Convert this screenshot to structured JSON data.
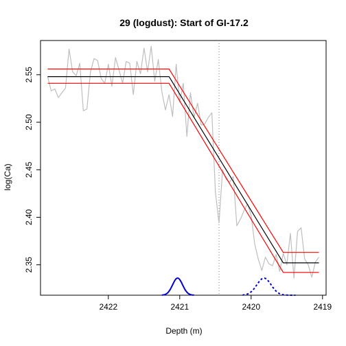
{
  "chart_data": {
    "type": "line",
    "title": "29 (logdust): Start of GI-17.2",
    "xlabel": "Depth (m)",
    "ylabel": "log(Ca)",
    "x_reversed": true,
    "xlim": [
      2422.95,
      2418.95
    ],
    "ylim": [
      2.318,
      2.586
    ],
    "xticks": [
      2422,
      2421,
      2420,
      2419
    ],
    "yticks": [
      2.35,
      2.4,
      2.45,
      2.5,
      2.55
    ],
    "ytick_labels": [
      "2.35",
      "2.40",
      "2.45",
      "2.50",
      "2.55"
    ],
    "grid": false,
    "colors": {
      "data": "#bebebe",
      "fit": "#000000",
      "band": "#ff0000",
      "onset_pdf": "#0000cd",
      "end_pdf": "#0000cd",
      "vline": "#808080"
    },
    "vline_x": 2420.45,
    "series": [
      {
        "key": "data",
        "x": [
          2422.85,
          2422.8,
          2422.75,
          2422.7,
          2422.65,
          2422.6,
          2422.55,
          2422.5,
          2422.45,
          2422.4,
          2422.35,
          2422.3,
          2422.25,
          2422.2,
          2422.15,
          2422.1,
          2422.05,
          2422.0,
          2421.95,
          2421.9,
          2421.85,
          2421.8,
          2421.75,
          2421.7,
          2421.65,
          2421.6,
          2421.55,
          2421.5,
          2421.45,
          2421.4,
          2421.35,
          2421.3,
          2421.25,
          2421.2,
          2421.15,
          2421.1,
          2421.05,
          2421.0,
          2420.95,
          2420.9,
          2420.85,
          2420.8,
          2420.75,
          2420.7,
          2420.65,
          2420.6,
          2420.55,
          2420.5,
          2420.45,
          2420.4,
          2420.35,
          2420.3,
          2420.25,
          2420.2,
          2420.15,
          2420.1,
          2420.05,
          2420.0,
          2419.95,
          2419.9,
          2419.85,
          2419.8,
          2419.75,
          2419.7,
          2419.65,
          2419.6,
          2419.55,
          2419.5,
          2419.45,
          2419.4,
          2419.35,
          2419.3,
          2419.25,
          2419.2,
          2419.15,
          2419.1,
          2419.05
        ],
        "y": [
          2.548,
          2.533,
          2.535,
          2.526,
          2.531,
          2.536,
          2.577,
          2.553,
          2.549,
          2.562,
          2.512,
          2.514,
          2.553,
          2.567,
          2.565,
          2.546,
          2.541,
          2.561,
          2.538,
          2.568,
          2.555,
          2.541,
          2.564,
          2.562,
          2.529,
          2.564,
          2.551,
          2.578,
          2.553,
          2.58,
          2.543,
          2.566,
          2.532,
          2.513,
          2.529,
          2.506,
          2.561,
          2.521,
          2.541,
          2.485,
          2.531,
          2.505,
          2.52,
          2.497,
          2.498,
          2.505,
          2.51,
          2.426,
          2.394,
          2.45,
          2.44,
          2.437,
          2.443,
          2.391,
          2.398,
          2.407,
          2.414,
          2.402,
          2.372,
          2.356,
          2.344,
          2.358,
          2.351,
          2.349,
          2.361,
          2.343,
          2.362,
          2.35,
          2.383,
          2.336,
          2.385,
          2.389,
          2.356,
          2.35,
          2.337,
          2.353,
          2.358
        ]
      },
      {
        "key": "fit",
        "x": [
          2422.85,
          2421.15,
          2419.55,
          2419.05
        ],
        "y": [
          2.548,
          2.548,
          2.352,
          2.352
        ]
      },
      {
        "key": "upper",
        "x": [
          2422.85,
          2421.15,
          2419.55,
          2419.05
        ],
        "y": [
          2.556,
          2.556,
          2.363,
          2.363
        ]
      },
      {
        "key": "lower",
        "x": [
          2422.85,
          2421.15,
          2419.55,
          2419.05
        ],
        "y": [
          2.541,
          2.541,
          2.342,
          2.342
        ]
      }
    ],
    "onset_pdf": {
      "mean": 2421.03,
      "sd": 0.07,
      "peak_y": 2.336,
      "base_y": 2.318,
      "range": [
        2421.25,
        2420.8
      ]
    },
    "end_pdf": {
      "mean": 2419.82,
      "sd": 0.1,
      "peak_y": 2.336,
      "base_y": 2.318,
      "range": [
        2420.12,
        2419.38
      ]
    }
  }
}
